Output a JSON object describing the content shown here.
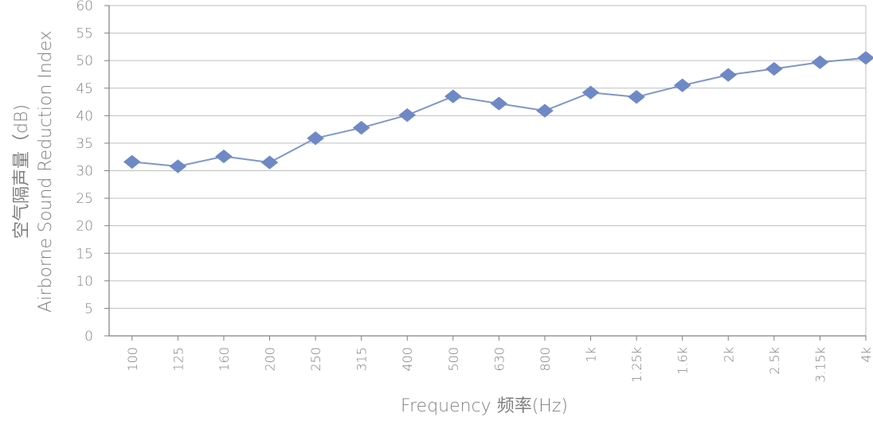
{
  "chart_data": {
    "type": "line",
    "xlabel": "Frequency 频率(Hz)",
    "ylabel_line1": "空气隔声量（dB)",
    "ylabel_line2": "Airborne Sound Reduction Index",
    "ylim": [
      0,
      60
    ],
    "ytick_step": 5,
    "yticks": [
      "0",
      "5",
      "10",
      "15",
      "20",
      "25",
      "30",
      "35",
      "40",
      "45",
      "50",
      "55",
      "60"
    ],
    "grid": true,
    "categories": [
      "100",
      "125",
      "160",
      "200",
      "250",
      "315",
      "400",
      "500",
      "630",
      "800",
      "1k",
      "1.25k",
      "1.6k",
      "2k",
      "2.5k",
      "3.15k",
      "4k"
    ],
    "series": [
      {
        "values": [
          31.6,
          30.8,
          32.6,
          31.5,
          35.9,
          37.8,
          40.1,
          43.5,
          42.2,
          40.9,
          44.2,
          43.4,
          45.5,
          47.4,
          48.5,
          49.7,
          50.5
        ]
      }
    ],
    "colors": {
      "line": "#8096c8",
      "marker": "#6f89c6",
      "grid": "#bfbfbf",
      "axis": "#7f7f7f",
      "text": "#7f7f7f"
    }
  }
}
